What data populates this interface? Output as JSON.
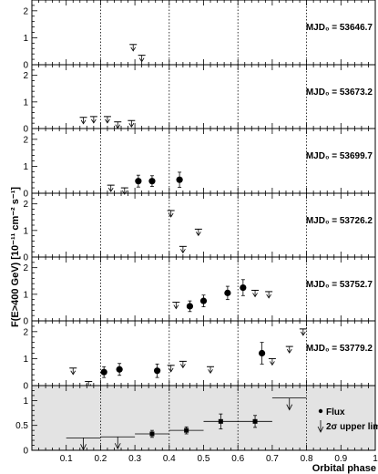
{
  "chart_data": {
    "type": "scatter",
    "x_label": "Orbital phase",
    "y_label": "F(E>400 GeV) [10⁻¹¹ cm⁻² s⁻¹]",
    "x_lim": [
      0,
      1
    ],
    "x_ticks": [
      "0.1",
      "0.2",
      "0.3",
      "0.4",
      "0.5",
      "0.6",
      "0.7",
      "0.8",
      "0.9",
      "1"
    ],
    "vertical_dotted_lines": [
      0.2,
      0.4,
      0.6,
      0.8
    ],
    "panels": [
      {
        "label": "MJD₀ = 53646.7",
        "y_lim": [
          0,
          2.4
        ],
        "y_ticks": [
          "0",
          "1",
          "2"
        ],
        "flux": [],
        "upper_limits": [
          {
            "x": 0.295,
            "y": 0.75
          },
          {
            "x": 0.32,
            "y": 0.35
          }
        ]
      },
      {
        "label": "MJD₀ = 53673.2",
        "y_lim": [
          0,
          2.4
        ],
        "y_ticks": [
          "0",
          "1",
          "2"
        ],
        "flux": [],
        "upper_limits": [
          {
            "x": 0.15,
            "y": 0.42
          },
          {
            "x": 0.18,
            "y": 0.45
          },
          {
            "x": 0.22,
            "y": 0.45
          },
          {
            "x": 0.25,
            "y": 0.25
          },
          {
            "x": 0.29,
            "y": 0.3
          }
        ]
      },
      {
        "label": "MJD₀ = 53699.7",
        "y_lim": [
          0,
          2.4
        ],
        "y_ticks": [
          "0",
          "1",
          "2"
        ],
        "flux": [
          {
            "x": 0.31,
            "y": 0.45,
            "err": 0.22
          },
          {
            "x": 0.35,
            "y": 0.45,
            "err": 0.2
          },
          {
            "x": 0.43,
            "y": 0.5,
            "err": 0.28
          }
        ],
        "upper_limits": [
          {
            "x": 0.23,
            "y": 0.3
          },
          {
            "x": 0.27,
            "y": 0.2
          }
        ]
      },
      {
        "label": "MJD₀ = 53726.2",
        "y_lim": [
          0,
          2.4
        ],
        "y_ticks": [
          "0",
          "1",
          "2"
        ],
        "flux": [],
        "upper_limits": [
          {
            "x": 0.405,
            "y": 1.75
          },
          {
            "x": 0.44,
            "y": 0.4
          },
          {
            "x": 0.485,
            "y": 1.05
          }
        ]
      },
      {
        "label": "MJD₀ = 53752.7",
        "y_lim": [
          0,
          2.4
        ],
        "y_ticks": [
          "0",
          "1",
          "2"
        ],
        "flux": [
          {
            "x": 0.46,
            "y": 0.55,
            "err": 0.2
          },
          {
            "x": 0.5,
            "y": 0.75,
            "err": 0.22
          },
          {
            "x": 0.57,
            "y": 1.05,
            "err": 0.25
          },
          {
            "x": 0.615,
            "y": 1.25,
            "err": 0.3
          }
        ],
        "upper_limits": [
          {
            "x": 0.42,
            "y": 0.7
          },
          {
            "x": 0.65,
            "y": 1.15
          },
          {
            "x": 0.69,
            "y": 1.1
          }
        ]
      },
      {
        "label": "MJD₀ = 53779.2",
        "y_lim": [
          0,
          2.4
        ],
        "y_ticks": [
          "0",
          "1",
          "2"
        ],
        "flux": [
          {
            "x": 0.21,
            "y": 0.5,
            "err": 0.2
          },
          {
            "x": 0.255,
            "y": 0.6,
            "err": 0.22
          },
          {
            "x": 0.365,
            "y": 0.55,
            "err": 0.25
          },
          {
            "x": 0.67,
            "y": 1.2,
            "err": 0.4
          }
        ],
        "upper_limits": [
          {
            "x": 0.12,
            "y": 0.65
          },
          {
            "x": 0.165,
            "y": 0.15
          },
          {
            "x": 0.405,
            "y": 0.75
          },
          {
            "x": 0.44,
            "y": 0.9
          },
          {
            "x": 0.52,
            "y": 0.7
          },
          {
            "x": 0.7,
            "y": 1.0
          },
          {
            "x": 0.75,
            "y": 1.45
          },
          {
            "x": 0.79,
            "y": 2.1
          }
        ]
      },
      {
        "label": "",
        "y_lim": [
          0,
          1.3
        ],
        "y_ticks": [
          "0",
          "0.5",
          "1"
        ],
        "shaded": true,
        "binned_flux": [
          {
            "x": 0.35,
            "x_err": 0.05,
            "y": 0.33,
            "err": 0.07
          },
          {
            "x": 0.45,
            "x_err": 0.05,
            "y": 0.4,
            "err": 0.07
          },
          {
            "x": 0.55,
            "x_err": 0.05,
            "y": 0.58,
            "err": 0.15
          },
          {
            "x": 0.65,
            "x_err": 0.05,
            "y": 0.58,
            "err": 0.12
          }
        ],
        "binned_upper_limits": [
          {
            "x": 0.15,
            "x_err": 0.05,
            "y": 0.25
          },
          {
            "x": 0.25,
            "x_err": 0.05,
            "y": 0.27
          },
          {
            "x": 0.75,
            "x_err": 0.05,
            "y": 1.05
          }
        ]
      }
    ],
    "legend": {
      "flux_label": "Flux",
      "upper_limit_label": "2σ upper limit",
      "position": "bottom-right of last panel"
    }
  }
}
